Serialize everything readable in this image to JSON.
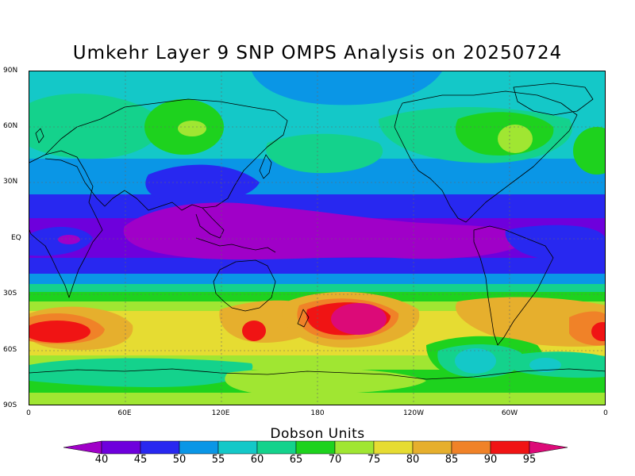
{
  "title": "Umkehr Layer 9 SNP OMPS Analysis on 20250724",
  "lat_labels": [
    "90N",
    "60N",
    "30N",
    "EQ",
    "30S",
    "60S",
    "90S"
  ],
  "lon_labels": [
    "0",
    "60E",
    "120E",
    "180",
    "120W",
    "60W",
    "0"
  ],
  "colorbar": {
    "title": "Dobson Units",
    "ticks": [
      "40",
      "45",
      "50",
      "55",
      "60",
      "65",
      "70",
      "75",
      "80",
      "85",
      "90",
      "95"
    ],
    "colors": [
      "#a000c8",
      "#6e00dc",
      "#2828f0",
      "#0a96e6",
      "#14c8c8",
      "#14d28c",
      "#1ed21e",
      "#a0e632",
      "#e6dc32",
      "#e6af2d",
      "#f08228",
      "#f01414",
      "#dc0a78"
    ]
  }
}
